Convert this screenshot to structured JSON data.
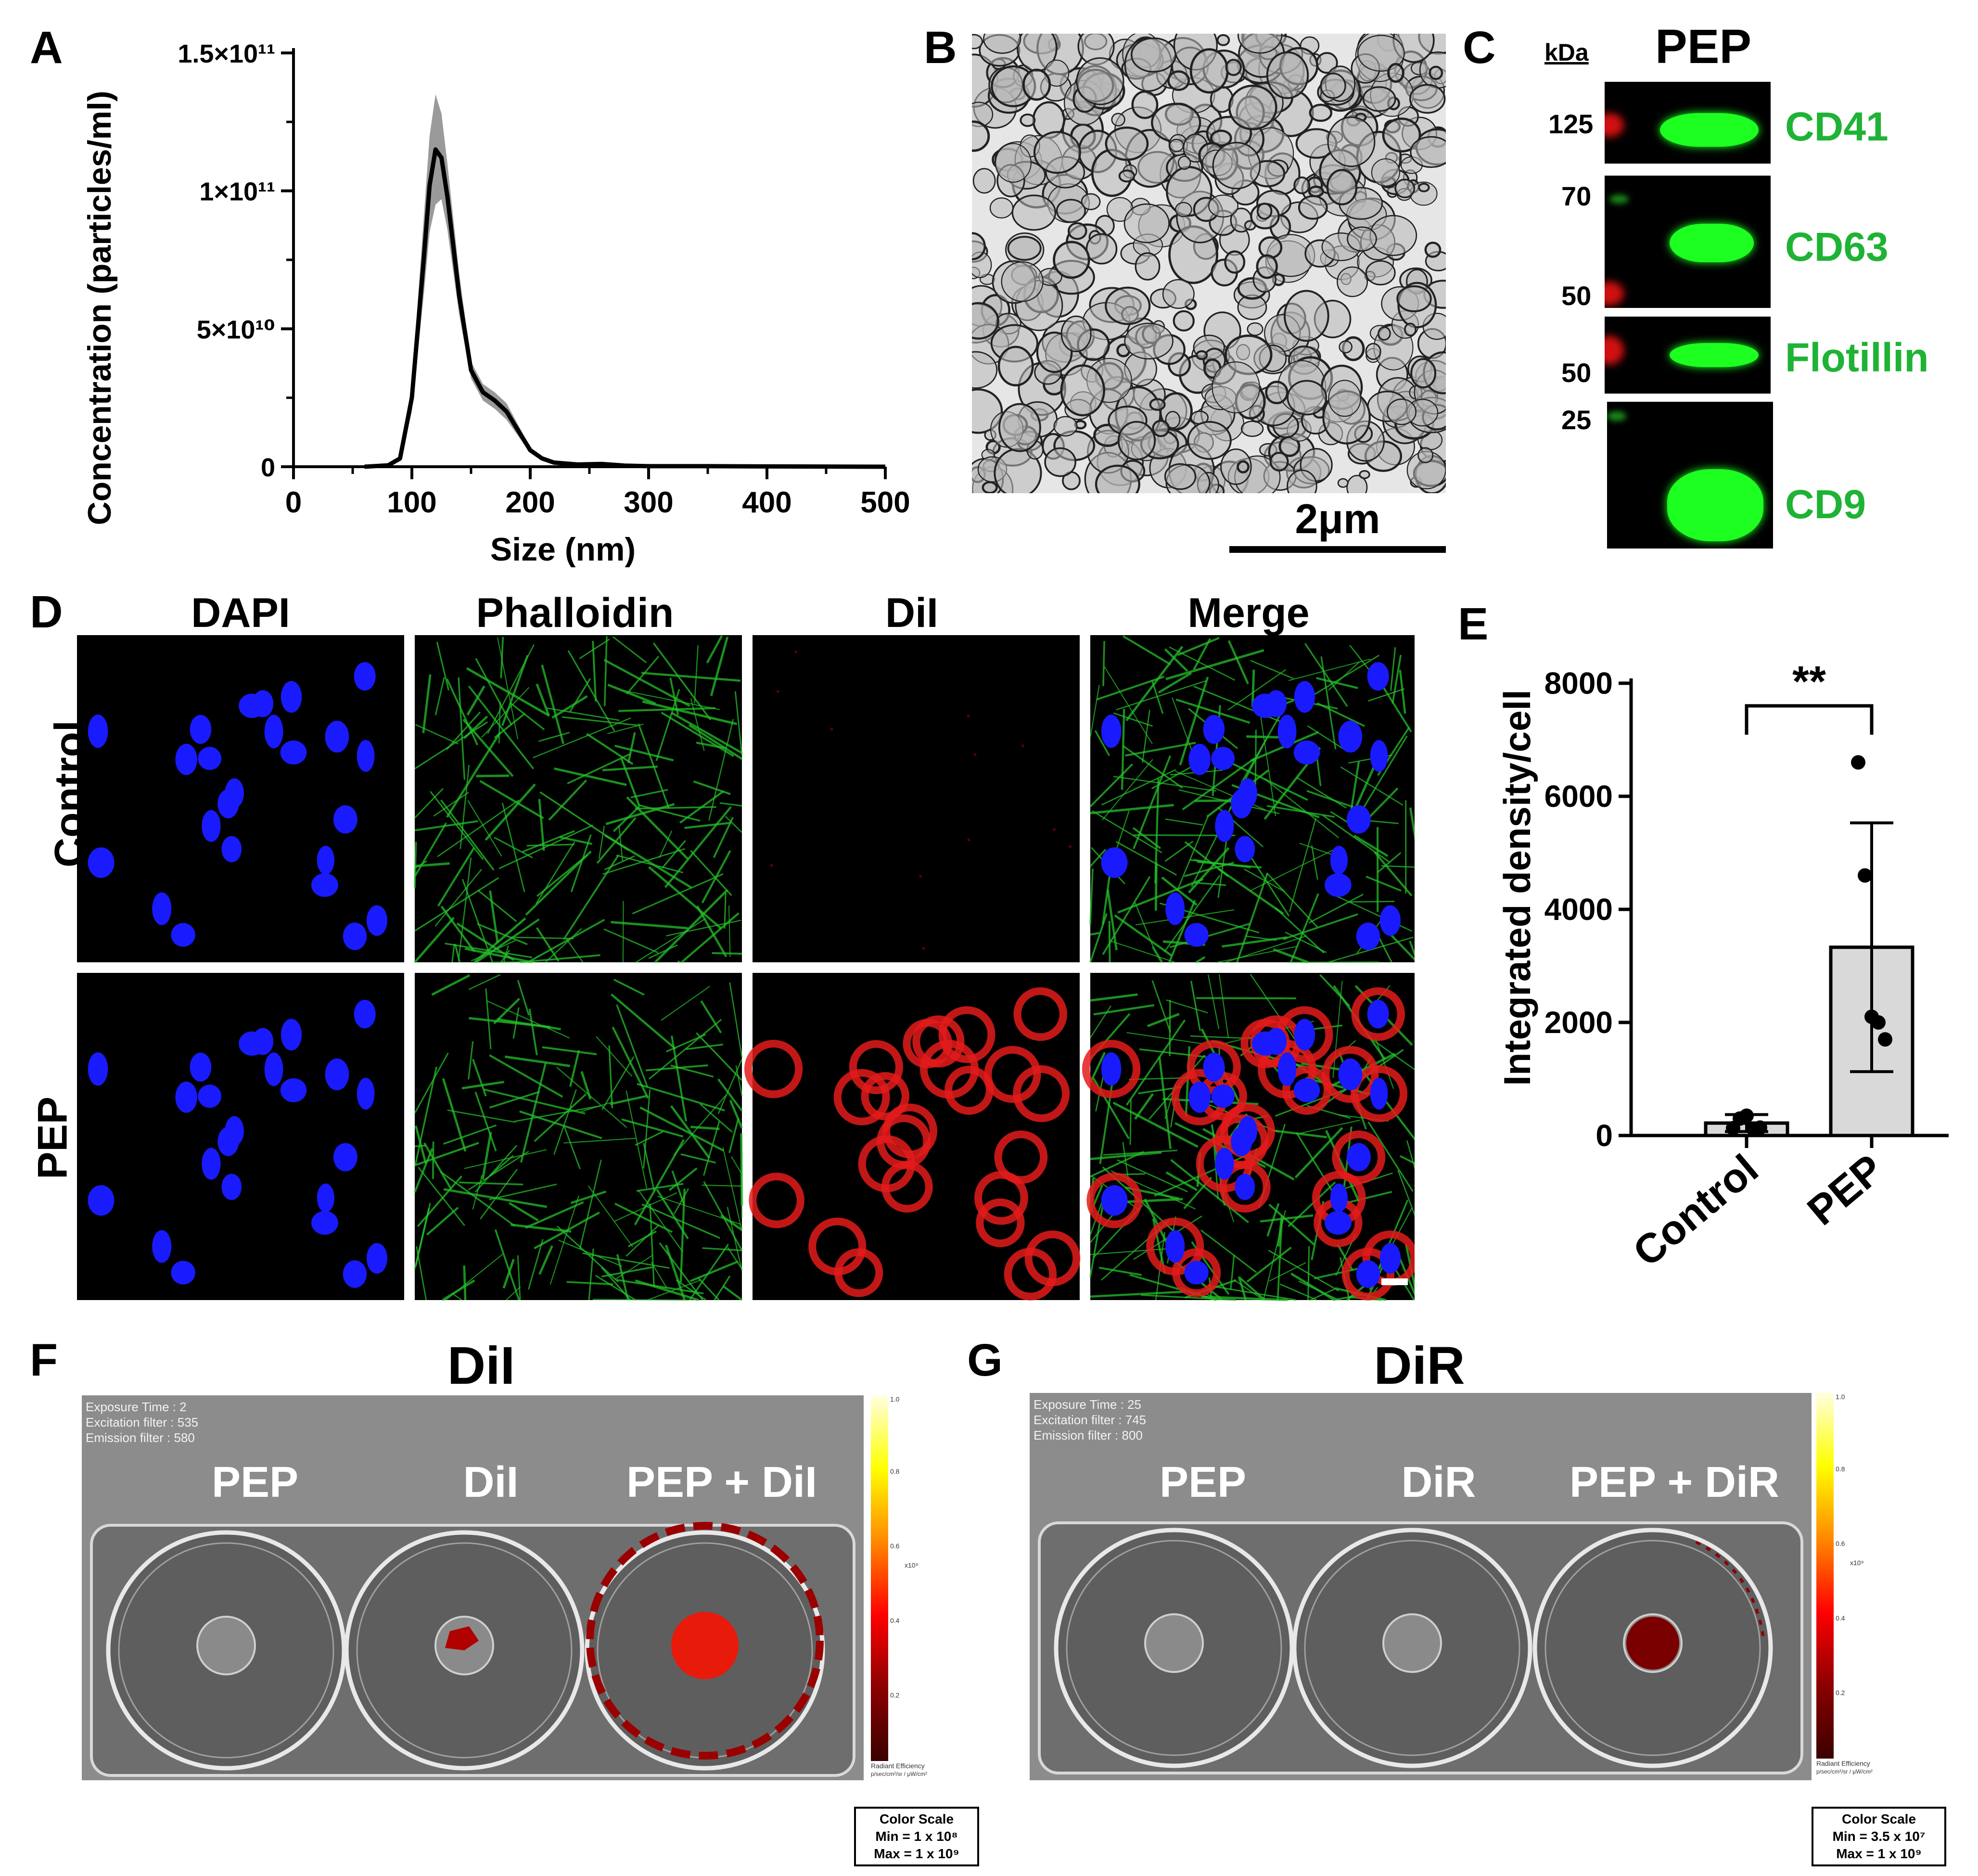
{
  "panel_labels": {
    "A": "A",
    "B": "B",
    "C": "C",
    "D": "D",
    "E": "E",
    "F": "F",
    "G": "G"
  },
  "panelA": {
    "chart_data": {
      "type": "line",
      "ylabel": "Concentration (particles/ml)",
      "xlabel": "Size (nm)",
      "xlim": [
        0,
        500
      ],
      "ylim": [
        0,
        150000000000.0
      ],
      "xticks": [
        "0",
        "100",
        "200",
        "300",
        "400",
        "500"
      ],
      "yticks": [
        "0",
        "5×10¹⁰",
        "1×10¹¹",
        "1.5×10¹¹"
      ],
      "series": [
        {
          "x": [
            60,
            80,
            90,
            100,
            110,
            115,
            120,
            125,
            130,
            140,
            150,
            160,
            170,
            180,
            190,
            200,
            210,
            220,
            240,
            260,
            280,
            300,
            350,
            400,
            500
          ],
          "values": [
            0,
            500000000.0,
            3000000000.0,
            25000000000.0,
            75000000000.0,
            102000000000.0,
            115000000000.0,
            112000000000.0,
            98000000000.0,
            62000000000.0,
            35000000000.0,
            27000000000.0,
            24000000000.0,
            20000000000.0,
            13000000000.0,
            6000000000.0,
            3000000000.0,
            1500000000.0,
            800000000.0,
            1000000000.0,
            400000000.0,
            200000000.0,
            200000000.0,
            100000000.0,
            0
          ],
          "upper": [
            0,
            800000000.0,
            4000000000.0,
            30000000000.0,
            90000000000.0,
            120000000000.0,
            135000000000.0,
            128000000000.0,
            110000000000.0,
            70000000000.0,
            38000000000.0,
            30000000000.0,
            27000000000.0,
            23000000000.0,
            15000000000.0,
            7000000000.0,
            3500000000.0,
            2000000000.0,
            1200000000.0,
            1600000000.0,
            600000000.0,
            300000000.0,
            300000000.0,
            200000000.0,
            0
          ],
          "lower": [
            0,
            300000000.0,
            2000000000.0,
            20000000000.0,
            62000000000.0,
            85000000000.0,
            95000000000.0,
            97000000000.0,
            86000000000.0,
            55000000000.0,
            32000000000.0,
            24000000000.0,
            21000000000.0,
            17000000000.0,
            11000000000.0,
            5000000000.0,
            2500000000.0,
            1000000000.0,
            500000000.0,
            400000000.0,
            200000000.0,
            100000000.0,
            100000000.0,
            0,
            0
          ]
        }
      ],
      "colors": {
        "line": "#000000",
        "band": "#9a9a9a"
      }
    }
  },
  "panelB": {
    "scalebar": "2μm"
  },
  "panelC": {
    "unit_label": "kDa",
    "lane_label": "PEP",
    "markers": [
      "125",
      "70",
      "50",
      "50",
      "25"
    ],
    "proteins": [
      "CD41",
      "CD63",
      "Flotillin",
      "CD9"
    ],
    "protein_color": "#1fb335"
  },
  "panelD": {
    "columns": [
      "DAPI",
      "Phalloidin",
      "DiI",
      "Merge"
    ],
    "rows": [
      "Control",
      "PEP"
    ]
  },
  "panelE": {
    "chart_data": {
      "type": "bar",
      "ylabel": "Integrated density/cell",
      "categories": [
        "Control",
        "PEP"
      ],
      "values": [
        220,
        3330
      ],
      "error": [
        150,
        2200
      ],
      "points": [
        [
          130,
          300,
          350,
          120,
          140
        ],
        [
          6600,
          4600,
          2100,
          2000,
          1700
        ]
      ],
      "ylim": [
        0,
        8000
      ],
      "yticks": [
        "0",
        "2000",
        "4000",
        "6000",
        "8000"
      ],
      "significance": "**",
      "colors": {
        "bar": "#d9d9d9",
        "edge": "#000000"
      }
    }
  },
  "panelF": {
    "title": "DiI",
    "info": [
      "Exposure Time : 2",
      "Excitation filter : 535",
      "Emission filter : 580"
    ],
    "wells": [
      "PEP",
      "DiI",
      "PEP + DiI"
    ],
    "colorbar_ticks": [
      "1.0",
      "0.8",
      "0.6",
      "0.4",
      "0.2"
    ],
    "colorbar_exp": "x10⁹",
    "colorbar_title": "Radiant Efficiency",
    "colorbar_unit": "p/sec/cm²/sr / μW/cm²",
    "scale_title": "Color Scale",
    "scale_min": "Min = 1 x 10⁸",
    "scale_max": "Max = 1 x 10⁹"
  },
  "panelG": {
    "title": "DiR",
    "info": [
      "Exposure Time : 25",
      "Excitation filter : 745",
      "Emission filter : 800"
    ],
    "wells": [
      "PEP",
      "DiR",
      "PEP + DiR"
    ],
    "colorbar_ticks": [
      "1.0",
      "0.8",
      "0.6",
      "0.4",
      "0.2"
    ],
    "colorbar_exp": "x10⁹",
    "colorbar_title": "Radiant Efficiency",
    "colorbar_unit": "p/sec/cm²/sr / μW/cm²",
    "scale_title": "Color Scale",
    "scale_min": "Min = 3.5 x 10⁷",
    "scale_max": "Max = 1 x 10⁹"
  }
}
